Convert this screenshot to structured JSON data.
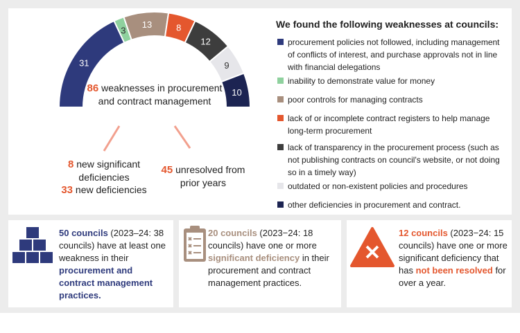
{
  "chart_data": {
    "type": "half-donut",
    "title": "We found the following weaknesses at councils:",
    "categories": [
      "procurement policies not followed, including management of conflicts of interest, and purchase approvals not in line with financial delegations",
      "inability to demonstrate value for money",
      "poor controls for managing contracts",
      "lack of or incomplete contract registers to help manage long-term procurement",
      "lack of transparency in the procurement process (such as not publishing contracts on council's website, or not doing so in a timely way)",
      "outdated or non-existent policies and procedures",
      "other deficiencies in procurement and contract."
    ],
    "values": [
      31,
      3,
      13,
      8,
      12,
      9,
      10
    ],
    "colors": [
      "#2e3a7c",
      "#8fd19e",
      "#a88f7e",
      "#e4572e",
      "#3d3d3d",
      "#e6e6ea",
      "#1c2452"
    ],
    "center_number": 86,
    "center_text": "weaknesses in procurement and contract management"
  },
  "breakdown": {
    "new_significant": 8,
    "new_significant_text": "new significant deficiencies",
    "new_deficiencies": 33,
    "new_deficiencies_text": "new deficiencies",
    "unresolved": 45,
    "unresolved_text": "unresolved from prior years"
  },
  "cards": [
    {
      "lead": "50 councils",
      "text": " (2023–24: 38 councils) have at least one weakness in their ",
      "emphasis": "procurement and contract management practices."
    },
    {
      "lead": "20 councils",
      "text": " (2023−24: 18 councils) have one or more ",
      "emphasis": "significant deficiency",
      "tail": " in their procurement and contract management practices."
    },
    {
      "lead": "12 councils",
      "text": " (2023−24: 15 councils) have one or more significant deficiency that has ",
      "emphasis": "not been resolved",
      "tail": " for over a year."
    }
  ]
}
